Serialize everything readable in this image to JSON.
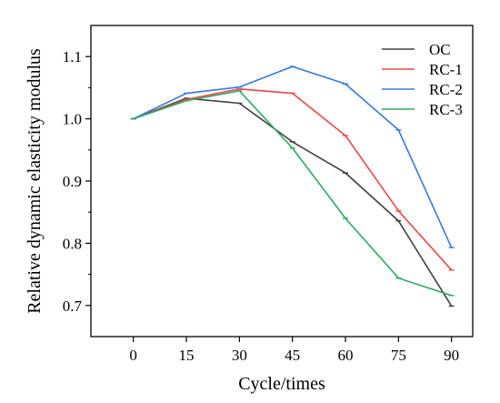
{
  "chart_data": {
    "type": "line",
    "xlabel": "Cycle/times",
    "ylabel": "Relative dynamic elasticity modulus",
    "xlim": [
      -12,
      96
    ],
    "ylim": [
      0.65,
      1.15
    ],
    "x_ticks": [
      0,
      15,
      30,
      45,
      60,
      75,
      90
    ],
    "y_ticks": [
      0.7,
      0.8,
      0.9,
      1.0,
      1.1
    ],
    "y_tick_labels": [
      "0.7",
      "0.8",
      "0.9",
      "1.0",
      "1.1"
    ],
    "grid": false,
    "legend_position": "top-right",
    "x": [
      0,
      15,
      30,
      45,
      60,
      75,
      90
    ],
    "series": [
      {
        "name": "OC",
        "color": "#404040",
        "values": [
          1.0,
          1.033,
          1.025,
          0.963,
          0.913,
          0.836,
          0.699
        ]
      },
      {
        "name": "RC-1",
        "color": "#f24444",
        "values": [
          1.0,
          1.031,
          1.048,
          1.041,
          0.973,
          0.852,
          0.757
        ]
      },
      {
        "name": "RC-2",
        "color": "#3478e0",
        "values": [
          1.0,
          1.041,
          1.051,
          1.084,
          1.056,
          0.982,
          0.793
        ]
      },
      {
        "name": "RC-3",
        "color": "#2eaa64",
        "values": [
          1.0,
          1.029,
          1.045,
          0.953,
          0.84,
          0.744,
          0.716
        ]
      }
    ]
  }
}
